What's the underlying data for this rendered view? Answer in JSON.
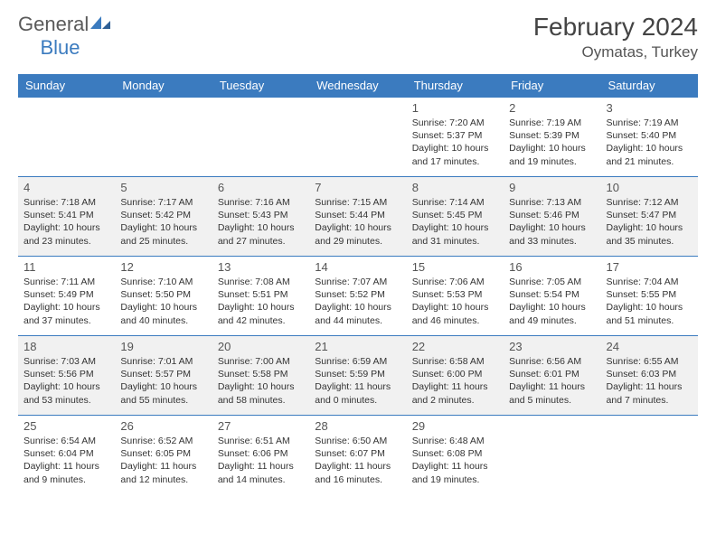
{
  "brand": {
    "name1": "General",
    "name2": "Blue"
  },
  "title": "February 2024",
  "location": "Oymatas, Turkey",
  "colors": {
    "header_bg": "#3b7bbf",
    "header_fg": "#ffffff",
    "body_bg": "#ffffff",
    "shade_bg": "#f1f1f1",
    "border": "#3b7bbf",
    "text": "#333333",
    "title_text": "#444444",
    "logo_gray": "#5a5a5a"
  },
  "weekdays": [
    "Sunday",
    "Monday",
    "Tuesday",
    "Wednesday",
    "Thursday",
    "Friday",
    "Saturday"
  ],
  "weeks": [
    {
      "shade": false,
      "days": [
        null,
        null,
        null,
        null,
        {
          "n": "1",
          "sr": "7:20 AM",
          "ss": "5:37 PM",
          "dl": "10 hours and 17 minutes."
        },
        {
          "n": "2",
          "sr": "7:19 AM",
          "ss": "5:39 PM",
          "dl": "10 hours and 19 minutes."
        },
        {
          "n": "3",
          "sr": "7:19 AM",
          "ss": "5:40 PM",
          "dl": "10 hours and 21 minutes."
        }
      ]
    },
    {
      "shade": true,
      "days": [
        {
          "n": "4",
          "sr": "7:18 AM",
          "ss": "5:41 PM",
          "dl": "10 hours and 23 minutes."
        },
        {
          "n": "5",
          "sr": "7:17 AM",
          "ss": "5:42 PM",
          "dl": "10 hours and 25 minutes."
        },
        {
          "n": "6",
          "sr": "7:16 AM",
          "ss": "5:43 PM",
          "dl": "10 hours and 27 minutes."
        },
        {
          "n": "7",
          "sr": "7:15 AM",
          "ss": "5:44 PM",
          "dl": "10 hours and 29 minutes."
        },
        {
          "n": "8",
          "sr": "7:14 AM",
          "ss": "5:45 PM",
          "dl": "10 hours and 31 minutes."
        },
        {
          "n": "9",
          "sr": "7:13 AM",
          "ss": "5:46 PM",
          "dl": "10 hours and 33 minutes."
        },
        {
          "n": "10",
          "sr": "7:12 AM",
          "ss": "5:47 PM",
          "dl": "10 hours and 35 minutes."
        }
      ]
    },
    {
      "shade": false,
      "days": [
        {
          "n": "11",
          "sr": "7:11 AM",
          "ss": "5:49 PM",
          "dl": "10 hours and 37 minutes."
        },
        {
          "n": "12",
          "sr": "7:10 AM",
          "ss": "5:50 PM",
          "dl": "10 hours and 40 minutes."
        },
        {
          "n": "13",
          "sr": "7:08 AM",
          "ss": "5:51 PM",
          "dl": "10 hours and 42 minutes."
        },
        {
          "n": "14",
          "sr": "7:07 AM",
          "ss": "5:52 PM",
          "dl": "10 hours and 44 minutes."
        },
        {
          "n": "15",
          "sr": "7:06 AM",
          "ss": "5:53 PM",
          "dl": "10 hours and 46 minutes."
        },
        {
          "n": "16",
          "sr": "7:05 AM",
          "ss": "5:54 PM",
          "dl": "10 hours and 49 minutes."
        },
        {
          "n": "17",
          "sr": "7:04 AM",
          "ss": "5:55 PM",
          "dl": "10 hours and 51 minutes."
        }
      ]
    },
    {
      "shade": true,
      "days": [
        {
          "n": "18",
          "sr": "7:03 AM",
          "ss": "5:56 PM",
          "dl": "10 hours and 53 minutes."
        },
        {
          "n": "19",
          "sr": "7:01 AM",
          "ss": "5:57 PM",
          "dl": "10 hours and 55 minutes."
        },
        {
          "n": "20",
          "sr": "7:00 AM",
          "ss": "5:58 PM",
          "dl": "10 hours and 58 minutes."
        },
        {
          "n": "21",
          "sr": "6:59 AM",
          "ss": "5:59 PM",
          "dl": "11 hours and 0 minutes."
        },
        {
          "n": "22",
          "sr": "6:58 AM",
          "ss": "6:00 PM",
          "dl": "11 hours and 2 minutes."
        },
        {
          "n": "23",
          "sr": "6:56 AM",
          "ss": "6:01 PM",
          "dl": "11 hours and 5 minutes."
        },
        {
          "n": "24",
          "sr": "6:55 AM",
          "ss": "6:03 PM",
          "dl": "11 hours and 7 minutes."
        }
      ]
    },
    {
      "shade": false,
      "days": [
        {
          "n": "25",
          "sr": "6:54 AM",
          "ss": "6:04 PM",
          "dl": "11 hours and 9 minutes."
        },
        {
          "n": "26",
          "sr": "6:52 AM",
          "ss": "6:05 PM",
          "dl": "11 hours and 12 minutes."
        },
        {
          "n": "27",
          "sr": "6:51 AM",
          "ss": "6:06 PM",
          "dl": "11 hours and 14 minutes."
        },
        {
          "n": "28",
          "sr": "6:50 AM",
          "ss": "6:07 PM",
          "dl": "11 hours and 16 minutes."
        },
        {
          "n": "29",
          "sr": "6:48 AM",
          "ss": "6:08 PM",
          "dl": "11 hours and 19 minutes."
        },
        null,
        null
      ]
    }
  ],
  "labels": {
    "sunrise": "Sunrise:",
    "sunset": "Sunset:",
    "daylight": "Daylight:"
  }
}
